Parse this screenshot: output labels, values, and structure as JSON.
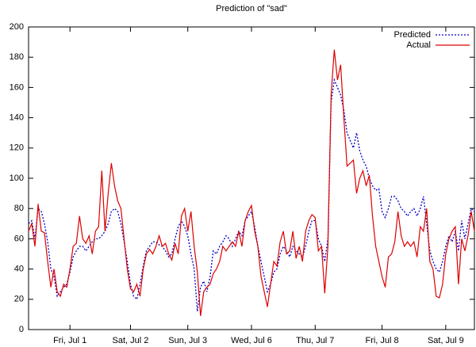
{
  "chart_data": {
    "type": "line",
    "title": "Prediction of \"sad\"",
    "categories": [
      null,
      null,
      null,
      null,
      null,
      null,
      null,
      null,
      null,
      null,
      null,
      null,
      null,
      "Fri, Jul 1",
      null,
      null,
      null,
      null,
      null,
      null,
      null,
      null,
      null,
      null,
      null,
      null,
      null,
      null,
      null,
      null,
      null,
      null,
      "Sat, Jul 2",
      null,
      null,
      null,
      null,
      null,
      null,
      null,
      null,
      null,
      null,
      null,
      null,
      null,
      null,
      null,
      null,
      null,
      "Sun, Jul 3",
      null,
      null,
      null,
      null,
      null,
      null,
      null,
      null,
      null,
      null,
      null,
      null,
      null,
      null,
      null,
      null,
      null,
      null,
      null,
      "Wed, Jul 6",
      null,
      null,
      null,
      null,
      null,
      null,
      null,
      null,
      null,
      null,
      null,
      null,
      null,
      null,
      null,
      null,
      null,
      null,
      null,
      "Thu, Jul 7",
      null,
      null,
      null,
      null,
      null,
      null,
      null,
      null,
      null,
      null,
      null,
      null,
      null,
      null,
      null,
      null,
      null,
      null,
      null,
      null,
      "Fri, Jul 8",
      null,
      null,
      null,
      null,
      null,
      null,
      null,
      null,
      null,
      null,
      null,
      null,
      null,
      null,
      null,
      null,
      null,
      null,
      null,
      "Sat, Jul 9",
      null,
      null,
      null,
      null,
      null,
      null,
      null,
      null,
      null
    ],
    "series": [
      {
        "name": "Predicted",
        "color": "#0000cc",
        "dash": true,
        "values": [
          70,
          72,
          60,
          80,
          78,
          70,
          58,
          40,
          35,
          22,
          25,
          28,
          30,
          38,
          48,
          52,
          55,
          55,
          52,
          55,
          58,
          60,
          60,
          62,
          65,
          70,
          78,
          80,
          78,
          70,
          58,
          45,
          30,
          22,
          20,
          30,
          42,
          52,
          55,
          58,
          58,
          56,
          55,
          52,
          48,
          50,
          60,
          68,
          72,
          68,
          62,
          50,
          40,
          12,
          28,
          32,
          25,
          35,
          52,
          50,
          55,
          58,
          62,
          60,
          55,
          60,
          65,
          62,
          72,
          75,
          78,
          68,
          55,
          45,
          35,
          25,
          30,
          38,
          40,
          50,
          55,
          52,
          48,
          55,
          52,
          50,
          48,
          55,
          65,
          72,
          72,
          60,
          55,
          45,
          60,
          150,
          165,
          160,
          155,
          145,
          130,
          125,
          120,
          130,
          118,
          112,
          108,
          100,
          95,
          92,
          93,
          78,
          74,
          80,
          88,
          88,
          85,
          80,
          78,
          75,
          78,
          80,
          75,
          80,
          88,
          70,
          52,
          45,
          40,
          38,
          45,
          55,
          62,
          58,
          65,
          52,
          72,
          60,
          70,
          80,
          78
        ]
      },
      {
        "name": "Actual",
        "color": "#dd0000",
        "dash": false,
        "values": [
          65,
          70,
          55,
          83,
          65,
          64,
          45,
          28,
          40,
          25,
          22,
          30,
          28,
          40,
          55,
          57,
          75,
          60,
          57,
          62,
          50,
          65,
          68,
          105,
          65,
          90,
          110,
          95,
          85,
          80,
          60,
          40,
          27,
          25,
          30,
          22,
          40,
          50,
          53,
          50,
          55,
          62,
          55,
          57,
          50,
          46,
          57,
          50,
          75,
          80,
          65,
          78,
          55,
          38,
          9,
          25,
          28,
          30,
          37,
          40,
          45,
          55,
          52,
          55,
          58,
          55,
          65,
          55,
          72,
          78,
          82,
          65,
          55,
          35,
          25,
          15,
          30,
          45,
          42,
          58,
          65,
          50,
          52,
          65,
          47,
          55,
          45,
          65,
          72,
          76,
          74,
          52,
          55,
          24,
          55,
          155,
          185,
          165,
          175,
          140,
          108,
          110,
          112,
          90,
          100,
          105,
          95,
          102,
          75,
          55,
          45,
          35,
          28,
          48,
          50,
          58,
          78,
          62,
          55,
          58,
          55,
          58,
          48,
          68,
          65,
          80,
          45,
          40,
          22,
          21,
          30,
          50,
          60,
          65,
          68,
          30,
          60,
          52,
          62,
          78,
          65
        ]
      }
    ],
    "ylim": [
      0,
      200
    ],
    "yticks": [
      0,
      20,
      40,
      60,
      80,
      100,
      120,
      140,
      160,
      180,
      200
    ],
    "legend": "top-right"
  }
}
